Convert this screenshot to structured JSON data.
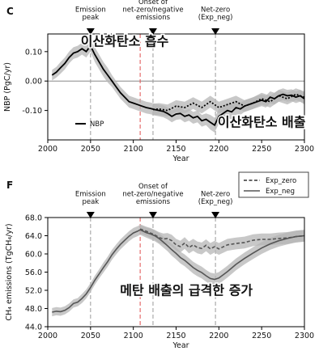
{
  "chart_data": [
    {
      "panel": "C",
      "type": "line",
      "xlabel": "Year",
      "ylabel": "NBP (PgC/yr)",
      "xlim": [
        2000,
        2300
      ],
      "ylim": [
        -0.2,
        0.16
      ],
      "xticks": [
        2000,
        2050,
        2100,
        2150,
        2200,
        2250,
        2300
      ],
      "yticks": [
        0.1,
        0.0,
        -0.1
      ],
      "ytick_labels": [
        "0.10",
        "0.00",
        "-0.10"
      ],
      "grid": false,
      "legend": {
        "placement": "lower-left",
        "entries": [
          "NBP"
        ]
      },
      "events": [
        {
          "year": 2050,
          "label": [
            "Emission",
            "peak"
          ],
          "red": false
        },
        {
          "year": 2108,
          "label": [],
          "red": true
        },
        {
          "year": 2123,
          "label": [
            "Onset of",
            "net-zero/negative",
            "emissions"
          ],
          "red": false
        },
        {
          "year": 2196,
          "label": [
            "Net-zero",
            "(Exp_neg)"
          ],
          "red": false
        }
      ],
      "annotations": [
        {
          "text": "이산화탄소 흡수",
          "year": 2090,
          "value": 0.12
        },
        {
          "text": "이산화탄소 배출",
          "year": 2250,
          "value": -0.155
        }
      ],
      "series": [
        {
          "name": "NBP",
          "style": "solid",
          "x": [
            2005,
            2010,
            2015,
            2020,
            2025,
            2030,
            2035,
            2040,
            2045,
            2050,
            2055,
            2060,
            2065,
            2070,
            2075,
            2080,
            2085,
            2090,
            2095,
            2100,
            2105,
            2110,
            2115,
            2120,
            2125,
            2130,
            2135,
            2140,
            2145,
            2150,
            2155,
            2160,
            2165,
            2170,
            2175,
            2180,
            2185,
            2190,
            2195,
            2200,
            2205,
            2210,
            2215,
            2220,
            2225,
            2230,
            2235,
            2240,
            2245,
            2250,
            2255,
            2260,
            2265,
            2270,
            2275,
            2280,
            2285,
            2290,
            2295,
            2300
          ],
          "values": [
            0.02,
            0.03,
            0.045,
            0.06,
            0.08,
            0.095,
            0.1,
            0.11,
            0.1,
            0.12,
            0.09,
            0.065,
            0.04,
            0.02,
            0.0,
            -0.02,
            -0.04,
            -0.055,
            -0.07,
            -0.075,
            -0.08,
            -0.085,
            -0.09,
            -0.093,
            -0.097,
            -0.1,
            -0.103,
            -0.11,
            -0.12,
            -0.112,
            -0.11,
            -0.12,
            -0.115,
            -0.125,
            -0.12,
            -0.135,
            -0.13,
            -0.14,
            -0.15,
            -0.12,
            -0.11,
            -0.1,
            -0.105,
            -0.09,
            -0.095,
            -0.085,
            -0.08,
            -0.075,
            -0.07,
            -0.065,
            -0.07,
            -0.055,
            -0.06,
            -0.05,
            -0.045,
            -0.05,
            -0.048,
            -0.055,
            -0.05,
            -0.06
          ],
          "band": [
            0.018,
            0.018,
            0.02,
            0.02,
            0.02,
            0.02,
            0.02,
            0.02,
            0.02,
            0.02,
            0.025,
            0.025,
            0.025,
            0.025,
            0.02,
            0.02,
            0.02,
            0.02,
            0.02,
            0.02,
            0.02,
            0.02,
            0.02,
            0.02,
            0.02,
            0.02,
            0.02,
            0.02,
            0.02,
            0.02,
            0.02,
            0.02,
            0.02,
            0.02,
            0.02,
            0.02,
            0.02,
            0.025,
            0.025,
            0.025,
            0.025,
            0.025,
            0.025,
            0.025,
            0.02,
            0.02,
            0.02,
            0.02,
            0.02,
            0.02,
            0.02,
            0.02,
            0.02,
            0.02,
            0.02,
            0.02,
            0.02,
            0.02,
            0.02,
            0.02
          ]
        },
        {
          "name": "",
          "style": "dotted",
          "x": [
            2123,
            2130,
            2140,
            2150,
            2160,
            2170,
            2180,
            2190,
            2200,
            2210,
            2220,
            2230,
            2240,
            2250,
            2260,
            2270,
            2280,
            2290,
            2300
          ],
          "values": [
            -0.097,
            -0.095,
            -0.1,
            -0.085,
            -0.09,
            -0.075,
            -0.09,
            -0.07,
            -0.09,
            -0.08,
            -0.07,
            -0.085,
            -0.075,
            -0.06,
            -0.07,
            -0.05,
            -0.06,
            -0.045,
            -0.055
          ],
          "band": [
            0.02,
            0.02,
            0.02,
            0.02,
            0.02,
            0.02,
            0.02,
            0.02,
            0.02,
            0.02,
            0.02,
            0.02,
            0.02,
            0.02,
            0.02,
            0.02,
            0.02,
            0.02,
            0.02
          ]
        }
      ]
    },
    {
      "panel": "F",
      "type": "line",
      "xlabel": "Year",
      "ylabel": "CH₄ emissions (TgCH₄/yr)",
      "xlim": [
        2000,
        2300
      ],
      "ylim": [
        44.0,
        68.0
      ],
      "xticks": [
        2000,
        2050,
        2100,
        2150,
        2200,
        2250,
        2300
      ],
      "yticks": [
        44.0,
        48.0,
        52.0,
        56.0,
        60.0,
        64.0,
        68.0
      ],
      "ytick_labels": [
        "44.0",
        "48.0",
        "52.0",
        "56.0",
        "60.0",
        "64.0",
        "68.0"
      ],
      "grid": false,
      "legend": {
        "placement": "above-right",
        "entries": [
          "Exp_zero",
          "Exp_neg"
        ]
      },
      "events": [
        {
          "year": 2050,
          "label": [
            "Emission",
            "peak"
          ],
          "red": false
        },
        {
          "year": 2108,
          "label": [],
          "red": true
        },
        {
          "year": 2123,
          "label": [
            "Onset of",
            "net-zero/negative",
            "emissions"
          ],
          "red": false
        },
        {
          "year": 2196,
          "label": [
            "Net-zero",
            "(Exp_neg)"
          ],
          "red": false
        }
      ],
      "annotations": [
        {
          "text": "메탄 배출의 급격한 증가",
          "year": 2162,
          "value": 51.0
        }
      ],
      "series": [
        {
          "name": "Exp_zero",
          "style": "dashed",
          "x": [
            2108,
            2115,
            2120,
            2125,
            2130,
            2135,
            2140,
            2145,
            2150,
            2155,
            2160,
            2165,
            2170,
            2175,
            2180,
            2185,
            2190,
            2195,
            2200,
            2210,
            2220,
            2230,
            2240,
            2250,
            2260,
            2270,
            2280,
            2290,
            2300
          ],
          "values": [
            65.5,
            65.0,
            64.6,
            64.2,
            63.6,
            63.3,
            63.4,
            62.9,
            62.0,
            61.6,
            62.4,
            61.4,
            62.0,
            61.4,
            61.2,
            61.9,
            61.1,
            61.6,
            61.1,
            62.0,
            62.3,
            62.5,
            63.0,
            63.2,
            63.2,
            63.4,
            63.5,
            63.8,
            64.0
          ],
          "band": [
            1.0,
            1.0,
            1.1,
            1.1,
            1.2,
            1.2,
            1.2,
            1.3,
            1.3,
            1.3,
            1.3,
            1.3,
            1.3,
            1.3,
            1.3,
            1.3,
            1.3,
            1.3,
            1.3,
            1.3,
            1.3,
            1.3,
            1.3,
            1.3,
            1.3,
            1.3,
            1.3,
            1.3,
            1.3
          ]
        },
        {
          "name": "Exp_neg",
          "style": "solid",
          "x": [
            2005,
            2010,
            2015,
            2020,
            2025,
            2030,
            2035,
            2040,
            2045,
            2050,
            2055,
            2060,
            2065,
            2070,
            2075,
            2080,
            2085,
            2090,
            2095,
            2100,
            2105,
            2108,
            2115,
            2120,
            2125,
            2130,
            2135,
            2140,
            2145,
            2150,
            2155,
            2160,
            2165,
            2170,
            2175,
            2180,
            2185,
            2190,
            2195,
            2200,
            2205,
            2210,
            2215,
            2220,
            2230,
            2240,
            2250,
            2260,
            2270,
            2280,
            2290,
            2300
          ],
          "values": [
            47.2,
            47.4,
            47.3,
            47.6,
            48.2,
            49.1,
            49.4,
            50.2,
            51.2,
            52.6,
            54.2,
            55.6,
            57.0,
            58.3,
            59.8,
            61.0,
            62.1,
            63.0,
            63.9,
            64.6,
            65.0,
            65.3,
            64.7,
            64.4,
            64.0,
            63.4,
            62.6,
            61.8,
            60.9,
            60.1,
            59.2,
            58.6,
            57.8,
            57.0,
            56.4,
            55.9,
            55.2,
            54.6,
            54.4,
            54.7,
            55.4,
            56.1,
            56.9,
            57.7,
            59.0,
            60.2,
            61.3,
            62.2,
            62.9,
            63.4,
            63.8,
            64.0
          ],
          "band": [
            0.9,
            0.9,
            0.9,
            0.9,
            0.9,
            0.9,
            0.9,
            1.0,
            1.0,
            1.0,
            1.0,
            1.0,
            1.1,
            1.1,
            1.1,
            1.1,
            1.1,
            1.1,
            1.1,
            1.1,
            1.1,
            1.1,
            1.1,
            1.2,
            1.2,
            1.2,
            1.2,
            1.2,
            1.3,
            1.3,
            1.3,
            1.3,
            1.3,
            1.3,
            1.3,
            1.3,
            1.3,
            1.3,
            1.3,
            1.3,
            1.3,
            1.3,
            1.3,
            1.3,
            1.3,
            1.3,
            1.3,
            1.3,
            1.3,
            1.3,
            1.3,
            1.3
          ]
        }
      ]
    }
  ]
}
